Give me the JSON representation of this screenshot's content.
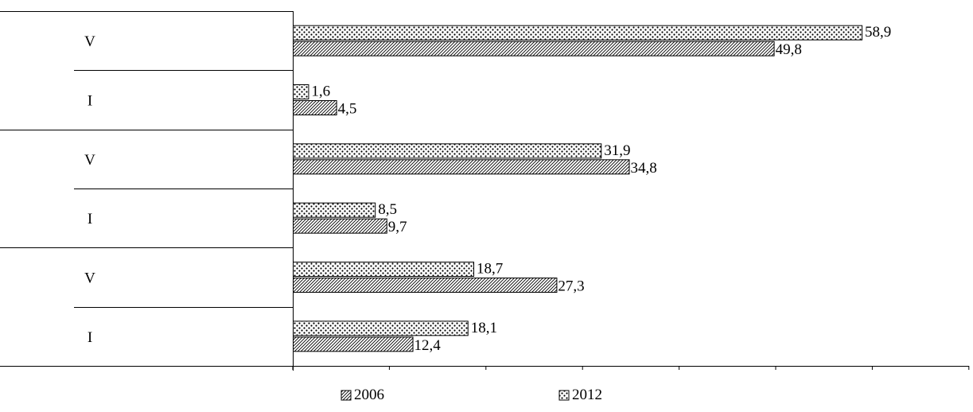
{
  "chart_data": {
    "type": "bar",
    "orientation": "horizontal",
    "categories": [
      "V",
      "I",
      "V",
      "I",
      "V",
      "I"
    ],
    "series": [
      {
        "name": "2006",
        "values": [
          49.8,
          4.5,
          34.8,
          9.7,
          27.3,
          12.4
        ]
      },
      {
        "name": "2012",
        "values": [
          58.9,
          1.6,
          31.9,
          8.5,
          18.7,
          18.1
        ]
      }
    ],
    "value_labels": {
      "2006": [
        "49,8",
        "4,5",
        "34,8",
        "9,7",
        "27,3",
        "12,4"
      ],
      "2012": [
        "58,9",
        "1,6",
        "31,9",
        "8,5",
        "18,7",
        "18,1"
      ]
    },
    "xlim": [
      0,
      70
    ],
    "grid": false,
    "legend": "bottom"
  }
}
